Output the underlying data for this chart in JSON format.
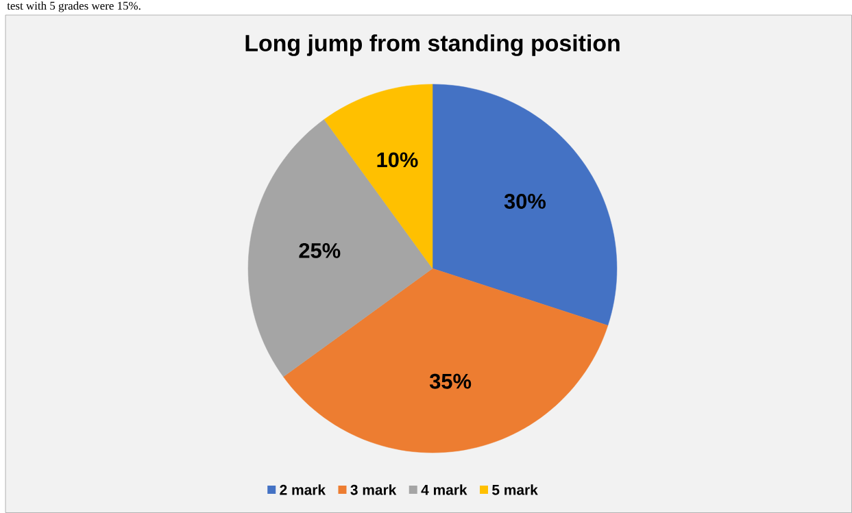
{
  "chart_data": {
    "type": "pie",
    "title": "Long jump from standing position",
    "categories": [
      "2 mark",
      "3 mark",
      "4 mark",
      "5 mark"
    ],
    "values": [
      30,
      35,
      25,
      10
    ],
    "colors": [
      "#4472c4",
      "#ed7d31",
      "#a5a5a5",
      "#ffc000"
    ],
    "value_labels": [
      "30%",
      "35%",
      "25%",
      "10%"
    ],
    "legend": "bottom",
    "annotations": [
      "test with 5 grades were 15%."
    ]
  }
}
